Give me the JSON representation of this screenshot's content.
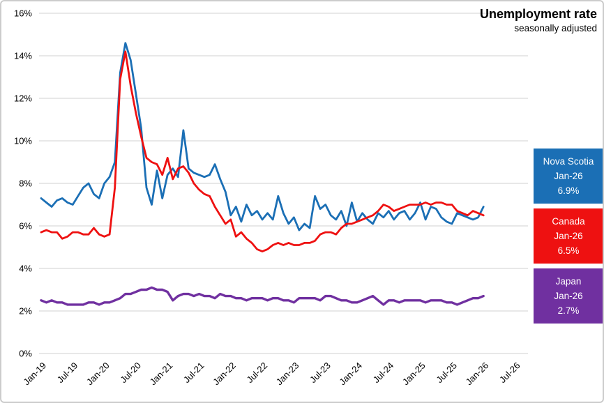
{
  "header": {
    "title": "Unemployment rate",
    "subtitle": "seasonally adjusted"
  },
  "legend": [
    {
      "name": "Nova Scotia",
      "period": "Jan-26",
      "value": "6.9%",
      "color": "#1b6fb5"
    },
    {
      "name": "Canada",
      "period": "Jan-26",
      "value": "6.5%",
      "color": "#ee1111"
    },
    {
      "name": "Japan",
      "period": "Jan-26",
      "value": "2.7%",
      "color": "#7030a0"
    }
  ],
  "chart_data": {
    "type": "line",
    "title": "Unemployment rate",
    "subtitle": "seasonally adjusted",
    "xlabel": "",
    "ylabel": "",
    "ylim": [
      0,
      16
    ],
    "y_tick_step": 2,
    "y_tick_labels": [
      "0%",
      "2%",
      "4%",
      "6%",
      "8%",
      "10%",
      "12%",
      "14%",
      "16%"
    ],
    "x_tick_labels": [
      "Jan-19",
      "Jul-19",
      "Jan-20",
      "Jul-20",
      "Jan-21",
      "Jul-21",
      "Jan-22",
      "Jul-22",
      "Jan-23",
      "Jul-23",
      "Jan-24",
      "Jul-24",
      "Jan-25",
      "Jul-25",
      "Jan-26",
      "Jul-26"
    ],
    "x_tick_month_indices": [
      0,
      6,
      12,
      18,
      24,
      30,
      36,
      42,
      48,
      54,
      60,
      66,
      72,
      78,
      84,
      90
    ],
    "grid": "horizontal",
    "gridline_color": "#d9d9d9",
    "legend_position": "right",
    "months": [
      "Jan-19",
      "Feb-19",
      "Mar-19",
      "Apr-19",
      "May-19",
      "Jun-19",
      "Jul-19",
      "Aug-19",
      "Sep-19",
      "Oct-19",
      "Nov-19",
      "Dec-19",
      "Jan-20",
      "Feb-20",
      "Mar-20",
      "Apr-20",
      "May-20",
      "Jun-20",
      "Jul-20",
      "Aug-20",
      "Sep-20",
      "Oct-20",
      "Nov-20",
      "Dec-20",
      "Jan-21",
      "Feb-21",
      "Mar-21",
      "Apr-21",
      "May-21",
      "Jun-21",
      "Jul-21",
      "Aug-21",
      "Sep-21",
      "Oct-21",
      "Nov-21",
      "Dec-21",
      "Jan-22",
      "Feb-22",
      "Mar-22",
      "Apr-22",
      "May-22",
      "Jun-22",
      "Jul-22",
      "Aug-22",
      "Sep-22",
      "Oct-22",
      "Nov-22",
      "Dec-22",
      "Jan-23",
      "Feb-23",
      "Mar-23",
      "Apr-23",
      "May-23",
      "Jun-23",
      "Jul-23",
      "Aug-23",
      "Sep-23",
      "Oct-23",
      "Nov-23",
      "Dec-23",
      "Jan-24",
      "Feb-24",
      "Mar-24",
      "Apr-24",
      "May-24",
      "Jun-24",
      "Jul-24",
      "Aug-24",
      "Sep-24",
      "Oct-24",
      "Nov-24",
      "Dec-24",
      "Jan-25",
      "Feb-25",
      "Mar-25",
      "Apr-25",
      "May-25",
      "Jun-25",
      "Jul-25",
      "Aug-25",
      "Sep-25",
      "Oct-25",
      "Nov-25",
      "Dec-25",
      "Jan-26"
    ],
    "series": [
      {
        "name": "Nova Scotia",
        "color": "#1b6fb5",
        "stroke_width": 2.8,
        "values": [
          7.3,
          7.1,
          6.9,
          7.2,
          7.3,
          7.1,
          7.0,
          7.4,
          7.8,
          8.0,
          7.5,
          7.3,
          8.0,
          8.3,
          9.0,
          13.2,
          14.6,
          13.8,
          12.2,
          10.6,
          7.8,
          7.0,
          8.6,
          7.3,
          8.4,
          8.7,
          8.3,
          10.5,
          8.7,
          8.5,
          8.4,
          8.3,
          8.4,
          8.9,
          8.2,
          7.6,
          6.5,
          6.9,
          6.2,
          7.0,
          6.5,
          6.7,
          6.3,
          6.6,
          6.3,
          7.4,
          6.6,
          6.1,
          6.4,
          5.8,
          6.1,
          5.9,
          7.4,
          6.8,
          7.0,
          6.5,
          6.3,
          6.7,
          6.0,
          7.1,
          6.2,
          6.6,
          6.3,
          6.1,
          6.6,
          6.4,
          6.7,
          6.3,
          6.6,
          6.7,
          6.3,
          6.6,
          7.1,
          6.3,
          6.9,
          6.8,
          6.4,
          6.2,
          6.1,
          6.6,
          6.5,
          6.4,
          6.3,
          6.4,
          6.9
        ]
      },
      {
        "name": "Canada",
        "color": "#ee1111",
        "stroke_width": 2.8,
        "values": [
          5.7,
          5.8,
          5.7,
          5.7,
          5.4,
          5.5,
          5.7,
          5.7,
          5.6,
          5.6,
          5.9,
          5.6,
          5.5,
          5.6,
          7.8,
          12.9,
          14.2,
          12.6,
          11.3,
          10.2,
          9.2,
          9.0,
          8.9,
          8.4,
          9.2,
          8.2,
          8.7,
          8.8,
          8.5,
          8.0,
          7.7,
          7.5,
          7.4,
          6.9,
          6.5,
          6.1,
          6.3,
          5.5,
          5.7,
          5.4,
          5.2,
          4.9,
          4.8,
          4.9,
          5.1,
          5.2,
          5.1,
          5.2,
          5.1,
          5.1,
          5.2,
          5.2,
          5.3,
          5.6,
          5.7,
          5.7,
          5.6,
          5.9,
          6.1,
          6.1,
          6.2,
          6.3,
          6.4,
          6.5,
          6.7,
          7.0,
          6.9,
          6.7,
          6.8,
          6.9,
          7.0,
          7.0,
          7.0,
          7.1,
          7.0,
          7.1,
          7.1,
          7.0,
          7.0,
          6.7,
          6.6,
          6.5,
          6.7,
          6.6,
          6.5
        ]
      },
      {
        "name": "Japan",
        "color": "#7030a0",
        "stroke_width": 3.4,
        "values": [
          2.5,
          2.4,
          2.5,
          2.4,
          2.4,
          2.3,
          2.3,
          2.3,
          2.3,
          2.4,
          2.4,
          2.3,
          2.4,
          2.4,
          2.5,
          2.6,
          2.8,
          2.8,
          2.9,
          3.0,
          3.0,
          3.1,
          3.0,
          3.0,
          2.9,
          2.5,
          2.7,
          2.8,
          2.8,
          2.7,
          2.8,
          2.7,
          2.7,
          2.6,
          2.8,
          2.7,
          2.7,
          2.6,
          2.6,
          2.5,
          2.6,
          2.6,
          2.6,
          2.5,
          2.6,
          2.6,
          2.5,
          2.5,
          2.4,
          2.6,
          2.6,
          2.6,
          2.6,
          2.5,
          2.7,
          2.7,
          2.6,
          2.5,
          2.5,
          2.4,
          2.4,
          2.5,
          2.6,
          2.7,
          2.5,
          2.3,
          2.5,
          2.5,
          2.4,
          2.5,
          2.5,
          2.5,
          2.5,
          2.4,
          2.5,
          2.5,
          2.5,
          2.4,
          2.4,
          2.3,
          2.4,
          2.5,
          2.6,
          2.6,
          2.7
        ]
      }
    ]
  }
}
